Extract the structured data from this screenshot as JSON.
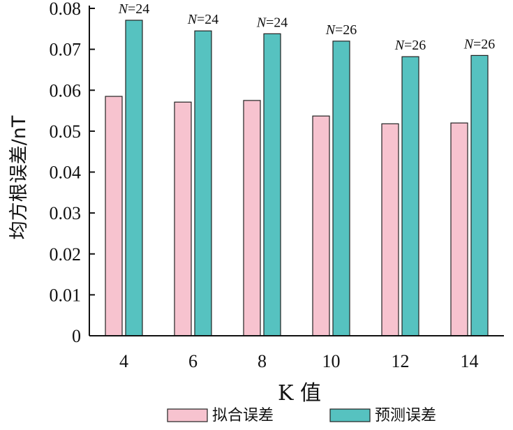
{
  "chart_data": {
    "type": "bar",
    "xlabel": "K 值",
    "ylabel": "均方根误差/nT",
    "ylim": [
      0,
      0.08
    ],
    "yticks": [
      "0",
      "0.01",
      "0.02",
      "0.03",
      "0.04",
      "0.05",
      "0.06",
      "0.07",
      "0.08"
    ],
    "categories": [
      "4",
      "6",
      "8",
      "10",
      "12",
      "14"
    ],
    "series": [
      {
        "name": "拟合误差",
        "color": "#f7c3cf",
        "values": [
          0.0585,
          0.0571,
          0.0575,
          0.0537,
          0.0518,
          0.052
        ]
      },
      {
        "name": "预测误差",
        "color": "#56c2c0",
        "values": [
          0.0771,
          0.0745,
          0.0738,
          0.072,
          0.0682,
          0.0685
        ]
      }
    ],
    "annotations": [
      "N=24",
      "N=24",
      "N=24",
      "N=26",
      "N=26",
      "N=26"
    ],
    "legend_position": "bottom",
    "grid": false
  }
}
